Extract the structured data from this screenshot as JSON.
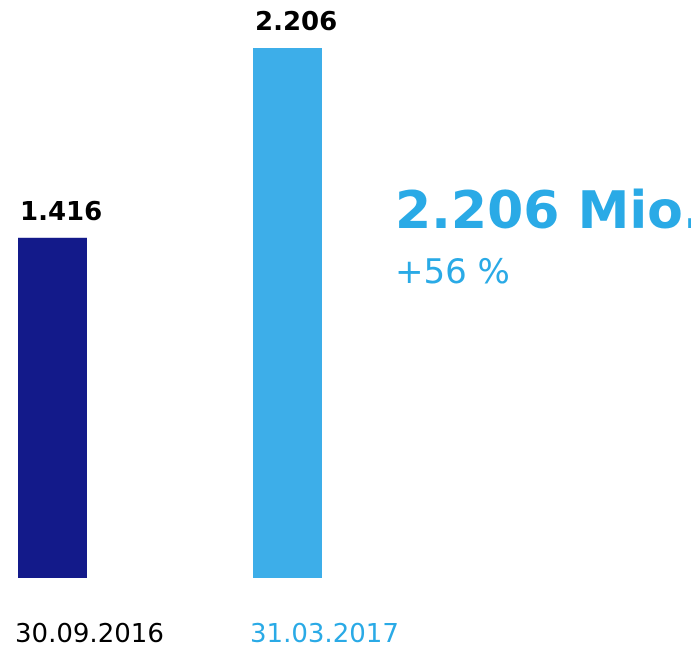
{
  "chart_data": {
    "type": "bar",
    "categories": [
      "30.09.2016",
      "31.03.2017"
    ],
    "values": [
      1.416,
      2.206
    ],
    "value_labels": [
      "1.416",
      "2.206"
    ],
    "colors": [
      "#131a8a",
      "#3daee9"
    ],
    "category_colors": [
      "#000000",
      "#2aaae6"
    ],
    "annotations": [
      {
        "text": "2.206 Mio."
      },
      {
        "text": "+56 %"
      }
    ]
  }
}
